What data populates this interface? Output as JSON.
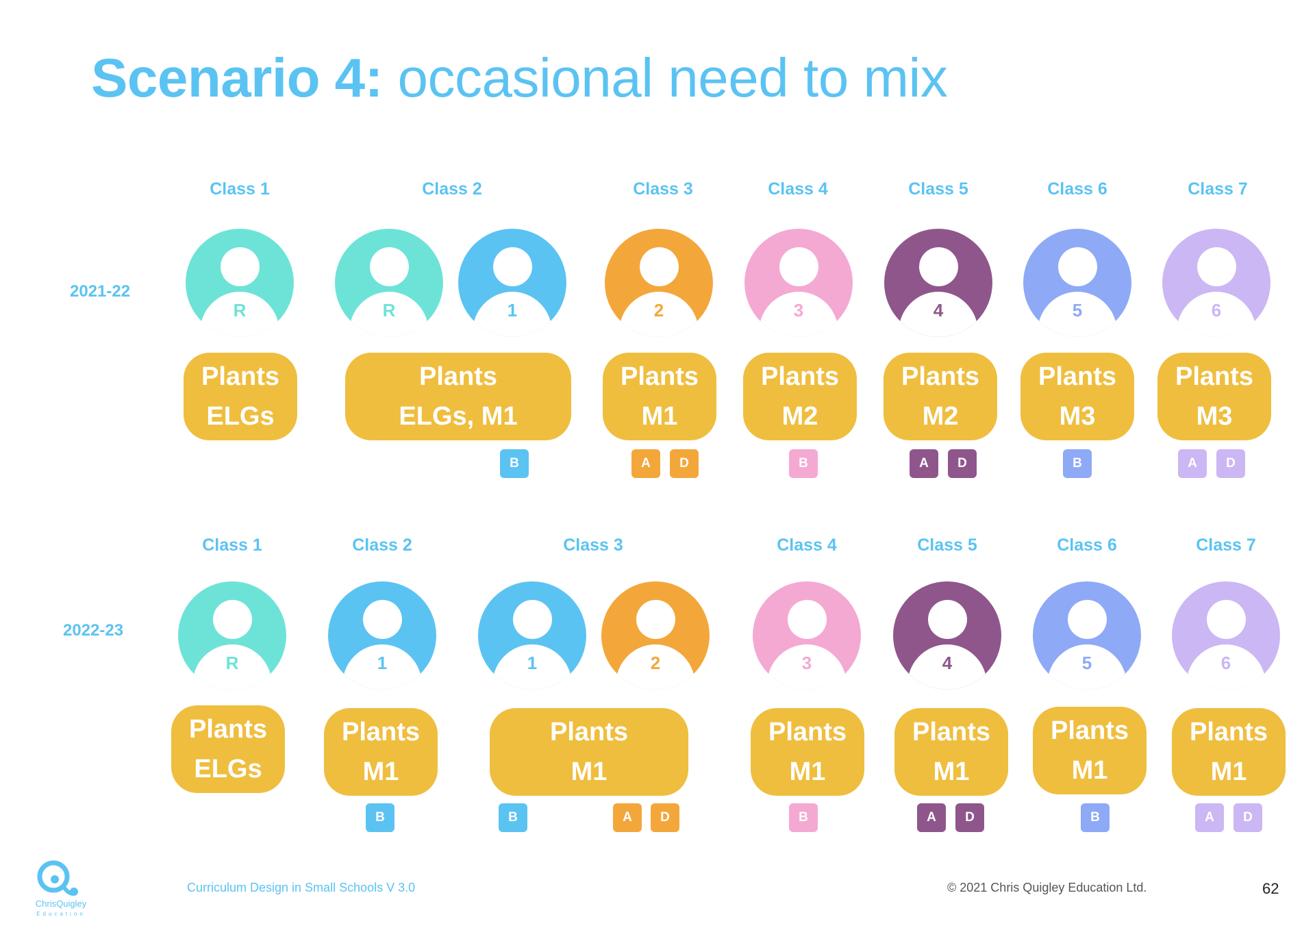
{
  "title": {
    "bold": "Scenario 4:",
    "rest": "occasional need to mix"
  },
  "colors": {
    "teal": "#6de3d8",
    "blue": "#5bc3f2",
    "orange": "#f3a73b",
    "pink": "#f4a9d3",
    "purple": "#8f568c",
    "periwinkle": "#8ea9f6",
    "lavender": "#cbb7f3",
    "plants": "#efbe3f"
  },
  "rows": [
    {
      "year": "2021-22",
      "classes": [
        "Class 1",
        "Class 2",
        "Class 3",
        "Class 4",
        "Class 5",
        "Class 6",
        "Class 7"
      ],
      "avatars": [
        {
          "label": "R",
          "color": "teal"
        },
        {
          "label": "R",
          "color": "teal"
        },
        {
          "label": "1",
          "color": "blue"
        },
        {
          "label": "2",
          "color": "orange"
        },
        {
          "label": "3",
          "color": "pink"
        },
        {
          "label": "4",
          "color": "purple"
        },
        {
          "label": "5",
          "color": "periwinkle"
        },
        {
          "label": "6",
          "color": "lavender"
        }
      ],
      "plants": [
        [
          "Plants",
          "ELGs"
        ],
        [
          "Plants",
          "ELGs, M1"
        ],
        [
          "Plants",
          "M1"
        ],
        [
          "Plants",
          "M2"
        ],
        [
          "Plants",
          "M2"
        ],
        [
          "Plants",
          "M3"
        ],
        [
          "Plants",
          "M3"
        ]
      ],
      "badges": [
        {
          "label": "B",
          "color": "blue"
        },
        {
          "label": "A",
          "color": "orange"
        },
        {
          "label": "D",
          "color": "orange"
        },
        {
          "label": "B",
          "color": "pink"
        },
        {
          "label": "A",
          "color": "purple"
        },
        {
          "label": "D",
          "color": "purple"
        },
        {
          "label": "B",
          "color": "periwinkle"
        },
        {
          "label": "A",
          "color": "lavender"
        },
        {
          "label": "D",
          "color": "lavender"
        }
      ]
    },
    {
      "year": "2022-23",
      "classes": [
        "Class 1",
        "Class 2",
        "Class 3",
        "Class 4",
        "Class 5",
        "Class 6",
        "Class 7"
      ],
      "avatars": [
        {
          "label": "R",
          "color": "teal"
        },
        {
          "label": "1",
          "color": "blue"
        },
        {
          "label": "1",
          "color": "blue"
        },
        {
          "label": "2",
          "color": "orange"
        },
        {
          "label": "3",
          "color": "pink"
        },
        {
          "label": "4",
          "color": "purple"
        },
        {
          "label": "5",
          "color": "periwinkle"
        },
        {
          "label": "6",
          "color": "lavender"
        }
      ],
      "plants": [
        [
          "Plants",
          "ELGs"
        ],
        [
          "Plants",
          "M1"
        ],
        [
          "Plants",
          "M1"
        ],
        [
          "Plants",
          "M1"
        ],
        [
          "Plants",
          "M1"
        ],
        [
          "Plants",
          "M1"
        ],
        [
          "Plants",
          "M1"
        ]
      ],
      "badges": [
        {
          "label": "B",
          "color": "blue"
        },
        {
          "label": "B",
          "color": "blue"
        },
        {
          "label": "A",
          "color": "orange"
        },
        {
          "label": "D",
          "color": "orange"
        },
        {
          "label": "B",
          "color": "pink"
        },
        {
          "label": "A",
          "color": "purple"
        },
        {
          "label": "D",
          "color": "purple"
        },
        {
          "label": "B",
          "color": "periwinkle"
        },
        {
          "label": "A",
          "color": "lavender"
        },
        {
          "label": "D",
          "color": "lavender"
        }
      ]
    }
  ],
  "footer": {
    "course": "Curriculum Design in Small Schools V 3.0",
    "copyright": "© 2021 Chris Quigley Education Ltd.",
    "page": "62",
    "logo_name": "ChrisQuigley",
    "logo_sub": "Education"
  }
}
